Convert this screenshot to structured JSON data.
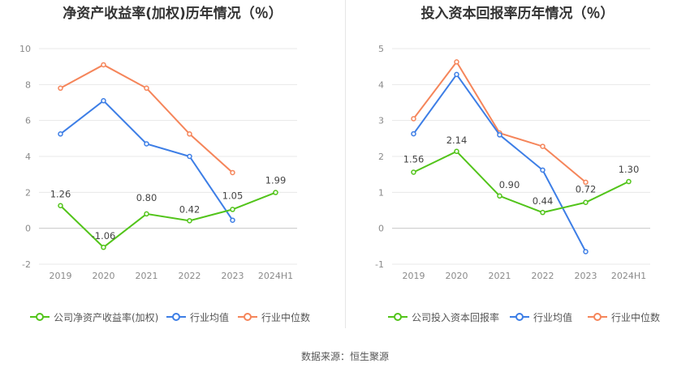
{
  "source": "数据来源：恒生聚源",
  "chart_data": [
    {
      "type": "line",
      "title": "净资产收益率(加权)历年情况（％）",
      "categories": [
        "2019",
        "2020",
        "2021",
        "2022",
        "2023",
        "2024H1"
      ],
      "ylim": [
        -2,
        10
      ],
      "yticks": [
        -2,
        0,
        2,
        4,
        6,
        8,
        10
      ],
      "series": [
        {
          "name": "公司净资产收益率(加权)",
          "color": "#52c41a",
          "values": [
            1.26,
            -1.06,
            0.8,
            0.42,
            1.05,
            1.99
          ],
          "labels": [
            "1.26",
            "-1.06",
            "0.80",
            "0.42",
            "1.05",
            "1.99"
          ]
        },
        {
          "name": "行业均值",
          "color": "#3d7ee6",
          "values": [
            5.25,
            7.1,
            4.7,
            4.0,
            0.45,
            null
          ]
        },
        {
          "name": "行业中位数",
          "color": "#f5855a",
          "values": [
            7.8,
            9.1,
            7.8,
            5.25,
            3.1,
            null
          ]
        }
      ]
    },
    {
      "type": "line",
      "title": "投入资本回报率历年情况（％）",
      "categories": [
        "2019",
        "2020",
        "2021",
        "2022",
        "2023",
        "2024H1"
      ],
      "ylim": [
        -1,
        5
      ],
      "yticks": [
        -1,
        0,
        1,
        2,
        3,
        4,
        5
      ],
      "series": [
        {
          "name": "公司投入资本回报率",
          "color": "#52c41a",
          "values": [
            1.56,
            2.14,
            0.9,
            0.44,
            0.72,
            1.3
          ],
          "labels": [
            "1.56",
            "2.14",
            "0.90",
            "0.44",
            "0.72",
            "1.30"
          ]
        },
        {
          "name": "行业均值",
          "color": "#3d7ee6",
          "values": [
            2.63,
            4.28,
            2.6,
            1.62,
            -0.65,
            null
          ]
        },
        {
          "name": "行业中位数",
          "color": "#f5855a",
          "values": [
            3.05,
            4.63,
            2.65,
            2.28,
            1.28,
            null
          ]
        }
      ]
    }
  ]
}
